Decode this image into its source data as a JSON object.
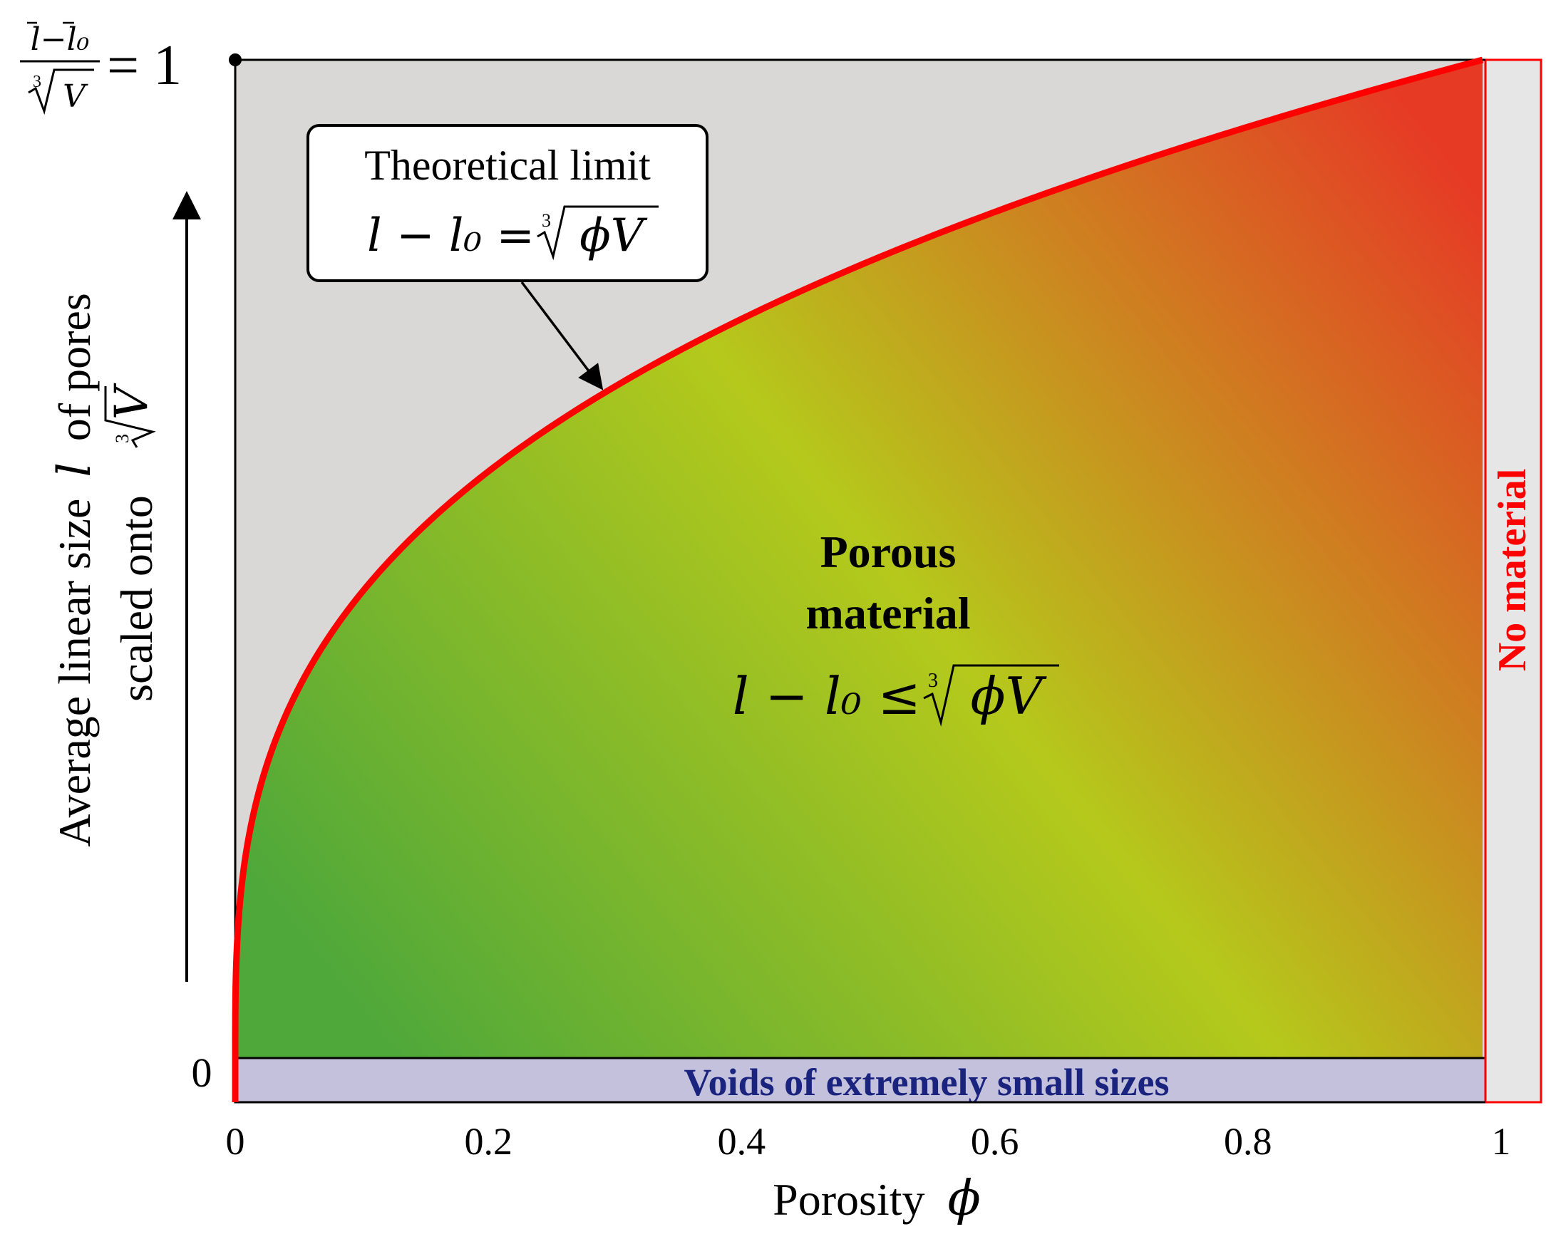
{
  "chart_data": {
    "type": "area",
    "xlabel": "Porosity",
    "xlabel_symbol": "ϕ",
    "ylabel_line1": "Average linear size",
    "ylabel_symbol": "l",
    "ylabel_line1_suffix": "of pores",
    "ylabel_line2": "scaled onto",
    "ylabel_line2_symbol": "V",
    "y_top_label": "= 1",
    "y_top_frac_num": "l−l₀",
    "y_top_frac_den": "V",
    "y_bottom_label": "0",
    "xlim": [
      0,
      1
    ],
    "ylim": [
      0,
      1
    ],
    "x_ticks": [
      "0",
      "0.2",
      "0.4",
      "0.6",
      "0.8",
      "1"
    ],
    "x_tick_values": [
      0,
      0.2,
      0.4,
      0.6,
      0.8,
      1.0
    ],
    "curve": {
      "equation": "cube_root",
      "x": [
        0,
        0.001,
        0.005,
        0.01,
        0.02,
        0.05,
        0.1,
        0.2,
        0.3,
        0.4,
        0.5,
        0.6,
        0.7,
        0.8,
        0.9,
        1.0
      ],
      "y": [
        0,
        0.1,
        0.171,
        0.215,
        0.271,
        0.368,
        0.464,
        0.585,
        0.669,
        0.737,
        0.794,
        0.843,
        0.888,
        0.928,
        0.965,
        1.0
      ]
    },
    "callout": {
      "title": "Theoretical limit",
      "equation_lhs": "l − l₀ =",
      "equation_rhs": "ϕV",
      "pointer_x": 0.29
    },
    "region_label": {
      "line1": "Porous",
      "line2": "material",
      "equation_lhs": "l − l₀ ≤",
      "equation_rhs": "ϕV"
    },
    "voids_label": "Voids of extremely small sizes",
    "no_material_label": "No material",
    "colors": {
      "curve": "#ff0000",
      "outside": "#d9d8d6",
      "voids_band": "#c4c1dd",
      "voids_text": "#1a237e",
      "no_material_text": "#ff0000",
      "no_material_bg": "#e6e6e6",
      "gradient_green": "#4ea83a",
      "gradient_yellow": "#b5c91b",
      "gradient_red": "#e63a25"
    }
  }
}
